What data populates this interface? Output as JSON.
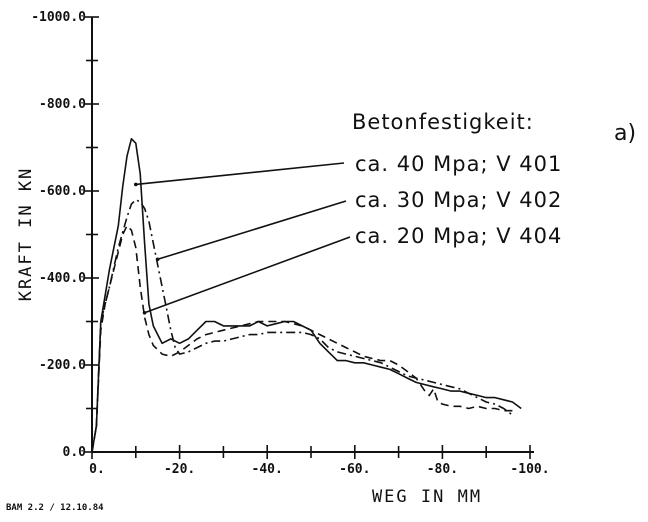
{
  "chart_data": {
    "type": "line",
    "xlabel": "WEG IN MM",
    "ylabel": "KRAFT IN KN",
    "xlim": [
      0,
      -100
    ],
    "ylim": [
      0,
      -1000
    ],
    "x_ticks": [
      0,
      -20,
      -40,
      -60,
      -80,
      -100
    ],
    "y_ticks": [
      0,
      -200,
      -400,
      -600,
      -800,
      -1000
    ],
    "x_tick_labels": [
      "0.",
      "-20.",
      "-40.",
      "-60.",
      "-80.",
      "-100."
    ],
    "y_tick_labels": [
      "0.0",
      "-200.0",
      "-400.0",
      "-600.0",
      "-800.0",
      "-1000.0"
    ],
    "legend_title": "Betonfestigkeit:",
    "panel_label": "a)",
    "grid": false,
    "series": [
      {
        "name": "ca. 40 Mpa; V 401",
        "style": "solid",
        "points": [
          [
            -1,
            -60
          ],
          [
            -2,
            -300
          ],
          [
            -4,
            -420
          ],
          [
            -6,
            -520
          ],
          [
            -7,
            -610
          ],
          [
            -8,
            -680
          ],
          [
            -9,
            -720
          ],
          [
            -10,
            -710
          ],
          [
            -11,
            -640
          ],
          [
            -12,
            -480
          ],
          [
            -13,
            -340
          ],
          [
            -14,
            -290
          ],
          [
            -15,
            -270
          ],
          [
            -16,
            -250
          ],
          [
            -18,
            -260
          ],
          [
            -20,
            -250
          ],
          [
            -22,
            -260
          ],
          [
            -24,
            -280
          ],
          [
            -26,
            -300
          ],
          [
            -28,
            -300
          ],
          [
            -30,
            -290
          ],
          [
            -32,
            -290
          ],
          [
            -34,
            -290
          ],
          [
            -36,
            -290
          ],
          [
            -38,
            -300
          ],
          [
            -40,
            -290
          ],
          [
            -42,
            -295
          ],
          [
            -44,
            -300
          ],
          [
            -46,
            -300
          ],
          [
            -48,
            -290
          ],
          [
            -50,
            -280
          ],
          [
            -52,
            -250
          ],
          [
            -54,
            -230
          ],
          [
            -56,
            -210
          ],
          [
            -58,
            -210
          ],
          [
            -60,
            -205
          ],
          [
            -62,
            -205
          ],
          [
            -64,
            -200
          ],
          [
            -66,
            -195
          ],
          [
            -68,
            -190
          ],
          [
            -70,
            -180
          ],
          [
            -72,
            -170
          ],
          [
            -74,
            -160
          ],
          [
            -76,
            -155
          ],
          [
            -78,
            -150
          ],
          [
            -80,
            -145
          ],
          [
            -82,
            -140
          ],
          [
            -84,
            -140
          ],
          [
            -86,
            -135
          ],
          [
            -88,
            -130
          ],
          [
            -90,
            -125
          ],
          [
            -92,
            -125
          ],
          [
            -94,
            -120
          ],
          [
            -96,
            -115
          ],
          [
            -98,
            -100
          ]
        ]
      },
      {
        "name": "ca. 30 Mpa; V 402",
        "style": "dash-dot",
        "points": [
          [
            -1,
            -60
          ],
          [
            -2,
            -300
          ],
          [
            -4,
            -380
          ],
          [
            -6,
            -470
          ],
          [
            -8,
            -540
          ],
          [
            -9,
            -570
          ],
          [
            -10,
            -580
          ],
          [
            -11,
            -575
          ],
          [
            -12,
            -560
          ],
          [
            -13,
            -530
          ],
          [
            -14,
            -480
          ],
          [
            -15,
            -430
          ],
          [
            -16,
            -380
          ],
          [
            -17,
            -330
          ],
          [
            -18,
            -280
          ],
          [
            -19,
            -240
          ],
          [
            -20,
            -225
          ],
          [
            -22,
            -230
          ],
          [
            -24,
            -240
          ],
          [
            -26,
            -250
          ],
          [
            -28,
            -255
          ],
          [
            -30,
            -255
          ],
          [
            -32,
            -260
          ],
          [
            -34,
            -265
          ],
          [
            -36,
            -270
          ],
          [
            -38,
            -270
          ],
          [
            -40,
            -275
          ],
          [
            -42,
            -275
          ],
          [
            -44,
            -275
          ],
          [
            -46,
            -275
          ],
          [
            -48,
            -275
          ],
          [
            -50,
            -270
          ],
          [
            -52,
            -260
          ],
          [
            -54,
            -240
          ],
          [
            -56,
            -230
          ],
          [
            -58,
            -225
          ],
          [
            -60,
            -220
          ],
          [
            -62,
            -215
          ],
          [
            -64,
            -210
          ],
          [
            -66,
            -205
          ],
          [
            -68,
            -195
          ],
          [
            -70,
            -185
          ],
          [
            -72,
            -175
          ],
          [
            -74,
            -170
          ],
          [
            -76,
            -165
          ],
          [
            -78,
            -160
          ],
          [
            -80,
            -155
          ],
          [
            -82,
            -150
          ],
          [
            -84,
            -145
          ],
          [
            -86,
            -135
          ],
          [
            -88,
            -125
          ],
          [
            -90,
            -115
          ],
          [
            -92,
            -110
          ],
          [
            -94,
            -100
          ],
          [
            -96,
            -85
          ]
        ]
      },
      {
        "name": "ca. 20 Mpa; V 404",
        "style": "dashed",
        "points": [
          [
            -1,
            -60
          ],
          [
            -2,
            -280
          ],
          [
            -3,
            -340
          ],
          [
            -4,
            -380
          ],
          [
            -5,
            -420
          ],
          [
            -6,
            -460
          ],
          [
            -7,
            -500
          ],
          [
            -8,
            -520
          ],
          [
            -9,
            -510
          ],
          [
            -10,
            -470
          ],
          [
            -11,
            -380
          ],
          [
            -12,
            -310
          ],
          [
            -13,
            -270
          ],
          [
            -14,
            -245
          ],
          [
            -15,
            -235
          ],
          [
            -16,
            -225
          ],
          [
            -18,
            -220
          ],
          [
            -20,
            -230
          ],
          [
            -22,
            -245
          ],
          [
            -24,
            -260
          ],
          [
            -26,
            -270
          ],
          [
            -28,
            -275
          ],
          [
            -30,
            -280
          ],
          [
            -32,
            -285
          ],
          [
            -34,
            -290
          ],
          [
            -36,
            -295
          ],
          [
            -38,
            -300
          ],
          [
            -40,
            -300
          ],
          [
            -42,
            -300
          ],
          [
            -44,
            -300
          ],
          [
            -46,
            -295
          ],
          [
            -48,
            -290
          ],
          [
            -50,
            -280
          ],
          [
            -52,
            -270
          ],
          [
            -54,
            -260
          ],
          [
            -56,
            -250
          ],
          [
            -58,
            -240
          ],
          [
            -60,
            -230
          ],
          [
            -62,
            -220
          ],
          [
            -64,
            -215
          ],
          [
            -66,
            -210
          ],
          [
            -68,
            -210
          ],
          [
            -70,
            -200
          ],
          [
            -72,
            -185
          ],
          [
            -74,
            -170
          ],
          [
            -76,
            -140
          ],
          [
            -77,
            -130
          ],
          [
            -78,
            -145
          ],
          [
            -79,
            -115
          ],
          [
            -80,
            -110
          ],
          [
            -82,
            -105
          ],
          [
            -84,
            -105
          ],
          [
            -86,
            -100
          ],
          [
            -88,
            -105
          ],
          [
            -90,
            -100
          ],
          [
            -92,
            -100
          ],
          [
            -94,
            -95
          ],
          [
            -96,
            -95
          ]
        ]
      }
    ],
    "annotation_targets": [
      [
        -10,
        -615
      ],
      [
        -15,
        -443
      ],
      [
        -12,
        -320
      ]
    ],
    "footer": "BAM 2.2 / 12.10.84"
  }
}
